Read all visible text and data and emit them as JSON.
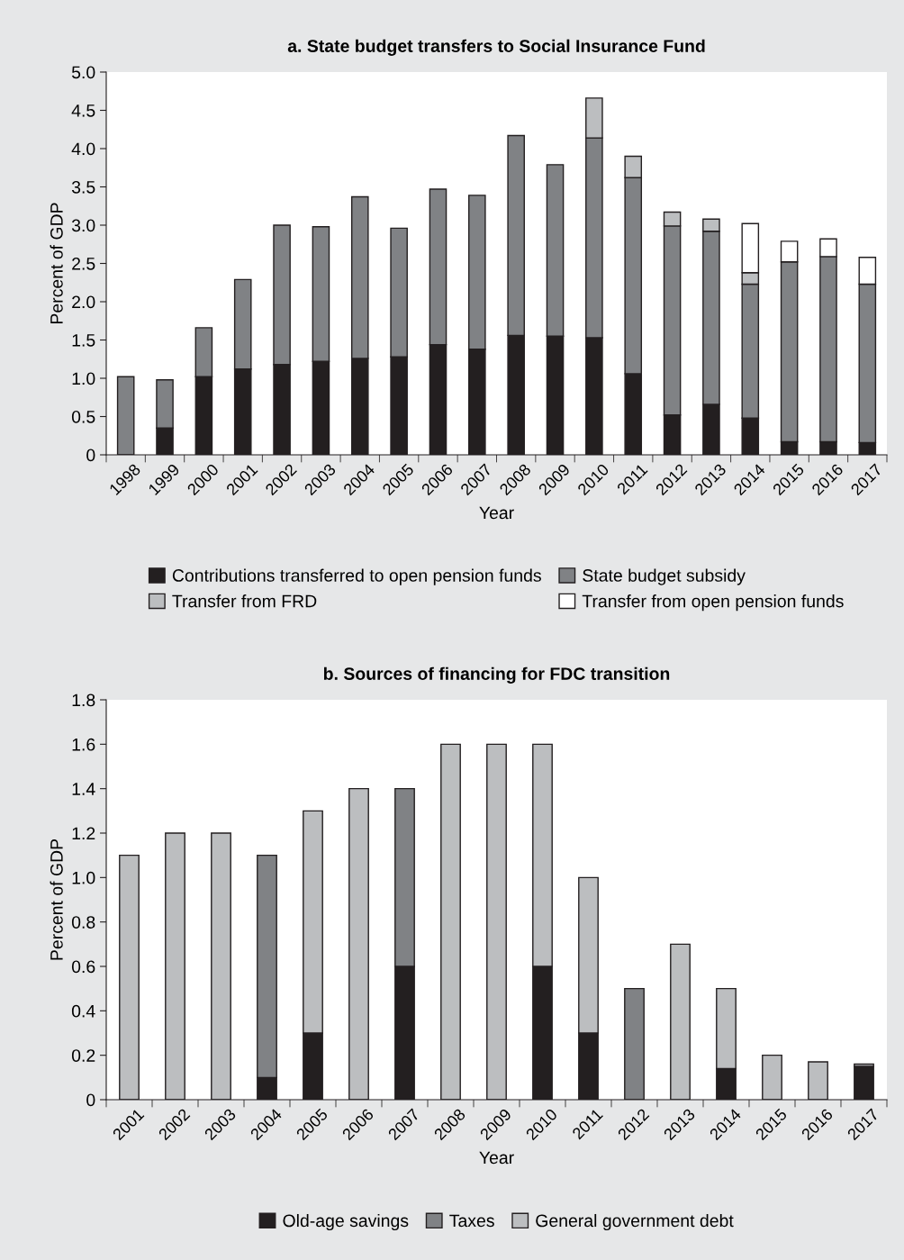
{
  "chart_data": [
    {
      "type": "bar",
      "stacked": true,
      "title": "a. State budget transfers to Social Insurance Fund",
      "xlabel": "Year",
      "ylabel": "Percent of GDP",
      "categories": [
        "1998",
        "1999",
        "2000",
        "2001",
        "2002",
        "2003",
        "2004",
        "2005",
        "2006",
        "2007",
        "2008",
        "2009",
        "2010",
        "2011",
        "2012",
        "2013",
        "2014",
        "2015",
        "2016",
        "2017"
      ],
      "series": [
        {
          "name": "Contributions transferred to open pension funds",
          "color": "#231f20",
          "values": [
            null,
            0.35,
            1.02,
            1.12,
            1.18,
            1.22,
            1.26,
            1.28,
            1.44,
            1.38,
            1.56,
            1.55,
            1.53,
            1.06,
            0.52,
            0.66,
            0.48,
            0.17,
            0.17,
            0.16
          ]
        },
        {
          "name": "State budget subsidy",
          "color": "#808285",
          "values": [
            1.02,
            0.63,
            0.64,
            1.17,
            1.82,
            1.76,
            2.11,
            1.68,
            2.03,
            2.01,
            2.61,
            2.24,
            2.61,
            2.56,
            2.47,
            2.26,
            1.75,
            2.35,
            2.42,
            2.07
          ]
        },
        {
          "name": "Transfer from FRD",
          "color": "#bcbec0",
          "values": [
            null,
            null,
            null,
            null,
            null,
            null,
            null,
            null,
            null,
            null,
            null,
            null,
            0.52,
            0.28,
            0.18,
            0.16,
            0.15,
            null,
            null,
            null
          ]
        },
        {
          "name": "Transfer from open pension funds",
          "color": "#ffffff",
          "values": [
            null,
            null,
            null,
            null,
            null,
            null,
            null,
            null,
            null,
            null,
            null,
            null,
            null,
            null,
            null,
            null,
            0.64,
            0.27,
            0.23,
            0.35
          ]
        }
      ],
      "ylim": [
        0,
        5.0
      ],
      "yticks": [
        0,
        {
          "value": 0.5,
          "label": "0.5"
        },
        {
          "value": 1.0,
          "label": "1.0"
        },
        {
          "value": 1.5,
          "label": "1.5"
        },
        {
          "value": 2.0,
          "label": "2.0"
        },
        {
          "value": 2.5,
          "label": "2.5"
        },
        {
          "value": 3.0,
          "label": "3.0"
        },
        {
          "value": 3.5,
          "label": "3.5"
        },
        {
          "value": 4.0,
          "label": "4.0"
        },
        {
          "value": 4.5,
          "label": "4.5"
        },
        {
          "value": 5.0,
          "label": "5.0"
        }
      ],
      "grid": false,
      "legend": "bottom"
    },
    {
      "type": "bar",
      "stacked": true,
      "title": "b. Sources of financing for FDC transition",
      "xlabel": "Year",
      "ylabel": "Percent of GDP",
      "categories": [
        "2001",
        "2002",
        "2003",
        "2004",
        "2005",
        "2006",
        "2007",
        "2008",
        "2009",
        "2010",
        "2011",
        "2012",
        "2013",
        "2014",
        "2015",
        "2016",
        "2017"
      ],
      "series": [
        {
          "name": "Old-age savings",
          "color": "#231f20",
          "values": [
            null,
            null,
            null,
            0.1,
            0.3,
            null,
            0.6,
            null,
            null,
            0.6,
            0.3,
            null,
            null,
            0.14,
            null,
            null,
            0.15
          ]
        },
        {
          "name": "Taxes",
          "color": "#808285",
          "values": [
            null,
            null,
            null,
            1.0,
            null,
            null,
            0.8,
            null,
            null,
            null,
            null,
            0.5,
            null,
            null,
            null,
            null,
            null
          ]
        },
        {
          "name": "General government debt",
          "color": "#bcbec0",
          "values": [
            1.1,
            1.2,
            1.2,
            null,
            1.0,
            1.4,
            null,
            1.6,
            1.6,
            1.0,
            0.7,
            null,
            0.7,
            0.36,
            0.2,
            0.17,
            0.01
          ]
        }
      ],
      "ylim": [
        0,
        1.8
      ],
      "yticks": [
        0,
        {
          "value": 0.2,
          "label": "0.2"
        },
        {
          "value": 0.4,
          "label": "0.4"
        },
        {
          "value": 0.6,
          "label": "0.6"
        },
        {
          "value": 0.8,
          "label": "0.8"
        },
        {
          "value": 1.0,
          "label": "1.0"
        },
        {
          "value": 1.2,
          "label": "1.2"
        },
        {
          "value": 1.4,
          "label": "1.4"
        },
        {
          "value": 1.6,
          "label": "1.6"
        },
        {
          "value": 1.8,
          "label": "1.8"
        }
      ],
      "grid": false,
      "legend": "bottom"
    }
  ]
}
